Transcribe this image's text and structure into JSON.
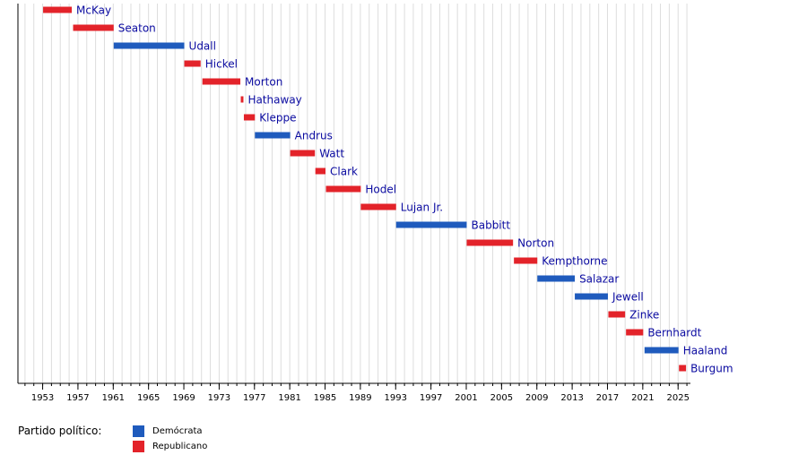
{
  "colors": {
    "dem": "#1f5bbd",
    "rep": "#e3232a",
    "label": "#0a0aa0",
    "grid": "#dddddd",
    "axis": "#000000"
  },
  "legend": {
    "title": "Partido político:",
    "items": [
      {
        "label": "Demócrata",
        "party": "dem"
      },
      {
        "label": "Republicano",
        "party": "rep"
      }
    ]
  },
  "chart_data": {
    "type": "timeline",
    "xlim": [
      1950.2,
      2026.4
    ],
    "ticks": [
      1953,
      1957,
      1961,
      1965,
      1969,
      1973,
      1977,
      1981,
      1985,
      1989,
      1993,
      1997,
      2001,
      2005,
      2009,
      2013,
      2017,
      2021,
      2025
    ],
    "bars": [
      {
        "name": "McKay",
        "party": "rep",
        "start": 1953.05,
        "end": 1956.3
      },
      {
        "name": "Seaton",
        "party": "rep",
        "start": 1956.45,
        "end": 1961.05
      },
      {
        "name": "Udall",
        "party": "dem",
        "start": 1961.05,
        "end": 1969.05
      },
      {
        "name": "Hickel",
        "party": "rep",
        "start": 1969.05,
        "end": 1970.9
      },
      {
        "name": "Morton",
        "party": "rep",
        "start": 1971.1,
        "end": 1975.4
      },
      {
        "name": "Hathaway",
        "party": "rep",
        "start": 1975.45,
        "end": 1975.75
      },
      {
        "name": "Kleppe",
        "party": "rep",
        "start": 1975.8,
        "end": 1977.05
      },
      {
        "name": "Andrus",
        "party": "dem",
        "start": 1977.05,
        "end": 1981.05
      },
      {
        "name": "Watt",
        "party": "rep",
        "start": 1981.05,
        "end": 1983.85
      },
      {
        "name": "Clark",
        "party": "rep",
        "start": 1983.9,
        "end": 1985.05
      },
      {
        "name": "Hodel",
        "party": "rep",
        "start": 1985.1,
        "end": 1989.05
      },
      {
        "name": "Lujan Jr.",
        "party": "rep",
        "start": 1989.05,
        "end": 1993.05
      },
      {
        "name": "Babbitt",
        "party": "dem",
        "start": 1993.05,
        "end": 2001.05
      },
      {
        "name": "Norton",
        "party": "rep",
        "start": 2001.05,
        "end": 2006.3
      },
      {
        "name": "Kempthorne",
        "party": "rep",
        "start": 2006.4,
        "end": 2009.05
      },
      {
        "name": "Salazar",
        "party": "dem",
        "start": 2009.05,
        "end": 2013.3
      },
      {
        "name": "Jewell",
        "party": "dem",
        "start": 2013.3,
        "end": 2017.05
      },
      {
        "name": "Zinke",
        "party": "rep",
        "start": 2017.1,
        "end": 2019.0
      },
      {
        "name": "Bernhardt",
        "party": "rep",
        "start": 2019.1,
        "end": 2021.05
      },
      {
        "name": "Haaland",
        "party": "dem",
        "start": 2021.2,
        "end": 2025.05
      },
      {
        "name": "Burgum",
        "party": "rep",
        "start": 2025.1,
        "end": 2025.9
      }
    ]
  }
}
